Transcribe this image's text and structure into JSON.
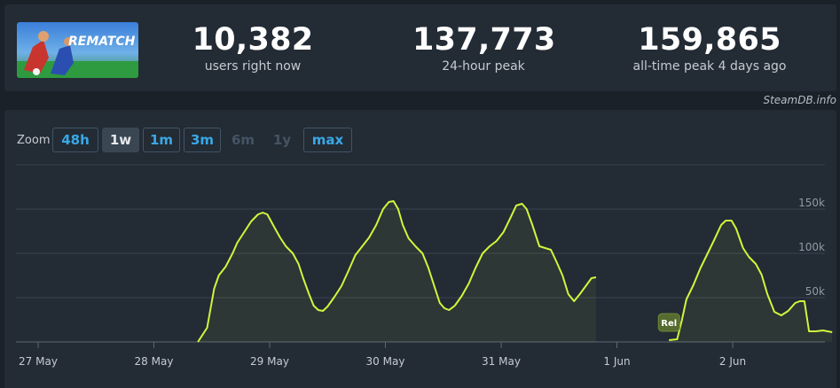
{
  "game": {
    "banner_text": "REMATCH"
  },
  "stats": [
    {
      "value": "10,382",
      "label": "users right now"
    },
    {
      "value": "137,773",
      "label": "24-hour peak"
    },
    {
      "value": "159,865",
      "label": "all-time peak 4 days ago"
    }
  ],
  "credit": "SteamDB.info",
  "zoom": {
    "label": "Zoom",
    "options": [
      "48h",
      "1w",
      "1m",
      "3m",
      "6m",
      "1y",
      "max"
    ],
    "selected": "1w",
    "disabled": [
      "6m",
      "1y"
    ]
  },
  "colors": {
    "line": "#d2f53c",
    "background": "#1b2129",
    "panel": "#232b35",
    "link": "#3aa8e6"
  },
  "chart_data": {
    "type": "area",
    "title": "",
    "xlabel": "",
    "ylabel": "",
    "x_unit": "days since 27 May 00:00",
    "xlim": [
      -0.15,
      6.9
    ],
    "ylim": [
      0,
      160000
    ],
    "y_ticks": [
      50000,
      100000,
      150000
    ],
    "y_tick_labels": [
      "50k",
      "100k",
      "150k"
    ],
    "x_ticks": [
      0,
      1,
      2,
      3,
      4,
      5,
      6
    ],
    "x_tick_labels": [
      "27 May",
      "28 May",
      "29 May",
      "30 May",
      "31 May",
      "1 Jun",
      "2 Jun"
    ],
    "grid": true,
    "legend": "none",
    "annotations": [
      {
        "label": "Rel",
        "x": 5.45
      }
    ],
    "series": [
      {
        "segments": [
          [
            [
              1.38,
              0
            ],
            [
              1.46,
              16000
            ],
            [
              1.52,
              60000
            ],
            [
              1.56,
              75000
            ],
            [
              1.62,
              85000
            ],
            [
              1.68,
              100000
            ],
            [
              1.72,
              112000
            ],
            [
              1.78,
              124000
            ],
            [
              1.84,
              136000
            ],
            [
              1.9,
              144000
            ],
            [
              1.94,
              146000
            ],
            [
              1.98,
              144000
            ],
            [
              2.03,
              132000
            ],
            [
              2.09,
              118000
            ],
            [
              2.14,
              108000
            ],
            [
              2.2,
              100000
            ],
            [
              2.25,
              88000
            ],
            [
              2.29,
              72000
            ],
            [
              2.34,
              54000
            ],
            [
              2.38,
              41000
            ],
            [
              2.42,
              36000
            ],
            [
              2.46,
              35000
            ],
            [
              2.5,
              40000
            ],
            [
              2.56,
              51000
            ],
            [
              2.62,
              63000
            ],
            [
              2.68,
              80000
            ],
            [
              2.74,
              98000
            ],
            [
              2.8,
              108000
            ],
            [
              2.86,
              118000
            ],
            [
              2.92,
              132000
            ],
            [
              2.98,
              150000
            ],
            [
              3.03,
              158000
            ],
            [
              3.07,
              159000
            ],
            [
              3.11,
              150000
            ],
            [
              3.15,
              132000
            ],
            [
              3.2,
              117000
            ],
            [
              3.26,
              108000
            ],
            [
              3.32,
              100000
            ],
            [
              3.37,
              84000
            ],
            [
              3.42,
              64000
            ],
            [
              3.47,
              44000
            ],
            [
              3.51,
              38000
            ],
            [
              3.55,
              36000
            ],
            [
              3.6,
              41000
            ],
            [
              3.66,
              52000
            ],
            [
              3.72,
              66000
            ],
            [
              3.78,
              84000
            ],
            [
              3.84,
              100000
            ],
            [
              3.9,
              108000
            ],
            [
              3.96,
              114000
            ],
            [
              4.02,
              124000
            ],
            [
              4.08,
              140000
            ],
            [
              4.13,
              154000
            ],
            [
              4.18,
              156000
            ],
            [
              4.22,
              150000
            ],
            [
              4.27,
              132000
            ],
            [
              4.33,
              108000
            ],
            [
              4.38,
              106000
            ],
            [
              4.43,
              104000
            ],
            [
              4.48,
              90000
            ],
            [
              4.53,
              75000
            ],
            [
              4.58,
              54000
            ],
            [
              4.63,
              46000
            ],
            [
              4.68,
              54000
            ],
            [
              4.73,
              63000
            ],
            [
              4.78,
              72000
            ],
            [
              4.82,
              73000
            ]
          ],
          [
            [
              5.45,
              2000
            ],
            [
              5.52,
              3000
            ],
            [
              5.56,
              24000
            ],
            [
              5.6,
              48000
            ],
            [
              5.66,
              64000
            ],
            [
              5.72,
              83000
            ],
            [
              5.78,
              99000
            ],
            [
              5.84,
              115000
            ],
            [
              5.9,
              132000
            ],
            [
              5.94,
              137000
            ],
            [
              5.99,
              137000
            ],
            [
              6.03,
              128000
            ],
            [
              6.09,
              106000
            ],
            [
              6.14,
              96000
            ],
            [
              6.2,
              88000
            ],
            [
              6.25,
              76000
            ],
            [
              6.3,
              54000
            ],
            [
              6.36,
              34000
            ],
            [
              6.42,
              30000
            ],
            [
              6.48,
              35000
            ],
            [
              6.54,
              44000
            ],
            [
              6.58,
              46000
            ],
            [
              6.62,
              46000
            ],
            [
              6.66,
              12000
            ],
            [
              6.72,
              12000
            ],
            [
              6.78,
              13000
            ],
            [
              6.86,
              11000
            ]
          ]
        ]
      }
    ]
  }
}
